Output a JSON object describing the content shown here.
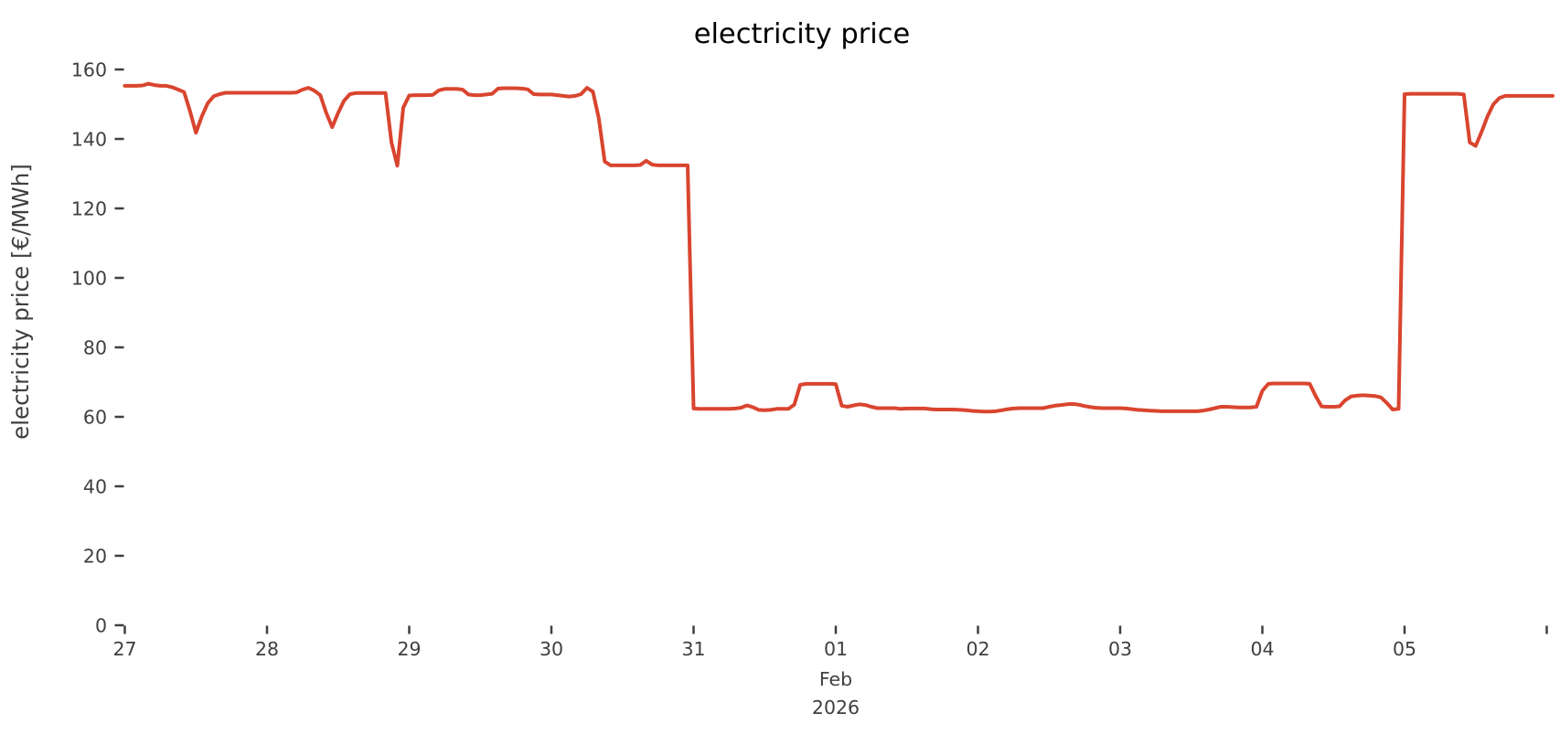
{
  "title": "electricity price",
  "colors": {
    "line": "#d9452f",
    "tick_text": "#3f3f3f",
    "tick_mark": "#3f3f3f",
    "title_text": "#000000"
  },
  "y_axis": {
    "label": "electricity price [€/MWh]",
    "ticks": [
      0,
      20,
      40,
      60,
      80,
      100,
      120,
      140,
      160
    ]
  },
  "x_axis": {
    "day_labels": [
      "27",
      "28",
      "29",
      "30",
      "31",
      "01",
      "02",
      "03",
      "04",
      "05"
    ],
    "edge_tick": true,
    "month_label": "Feb",
    "year_label": "2026",
    "month_label_day_index": 5
  },
  "chart_data": {
    "type": "line",
    "title": "electricity price",
    "xlabel": "",
    "ylabel": "electricity price [€/MWh]",
    "x_start": "2026-01-27T00:00",
    "x_step": "1 hour",
    "x_end": "2026-02-06T01:00",
    "ylim": [
      0,
      160
    ],
    "grid": false,
    "legend": "none",
    "x_tick_labels": [
      "27",
      "28",
      "29",
      "30",
      "31",
      "01",
      "02",
      "03",
      "04",
      "05"
    ],
    "y_tick_labels": [
      0,
      20,
      40,
      60,
      80,
      100,
      120,
      140,
      160
    ],
    "series": [
      {
        "name": "electricity price",
        "color": "#d9452f",
        "values": [
          155.3,
          155.3,
          155.3,
          155.4,
          155.9,
          155.5,
          155.3,
          155.3,
          154.9,
          154.2,
          153.5,
          148.0,
          141.8,
          146.5,
          150.3,
          152.3,
          152.9,
          153.3,
          153.3,
          153.3,
          153.3,
          153.3,
          153.3,
          153.3,
          153.3,
          153.3,
          153.3,
          153.3,
          153.3,
          153.4,
          154.2,
          154.7,
          153.9,
          152.6,
          147.5,
          143.4,
          147.5,
          151.0,
          152.9,
          153.2,
          153.2,
          153.2,
          153.2,
          153.2,
          153.2,
          139.0,
          132.3,
          149.0,
          152.5,
          152.6,
          152.6,
          152.6,
          152.7,
          154.0,
          154.4,
          154.4,
          154.4,
          154.2,
          152.8,
          152.6,
          152.6,
          152.8,
          153.0,
          154.5,
          154.6,
          154.6,
          154.6,
          154.5,
          154.3,
          152.9,
          152.8,
          152.8,
          152.8,
          152.6,
          152.4,
          152.2,
          152.4,
          152.9,
          154.7,
          153.6,
          146.0,
          133.5,
          132.4,
          132.4,
          132.4,
          132.4,
          132.4,
          132.5,
          133.7,
          132.6,
          132.4,
          132.4,
          132.4,
          132.4,
          132.4,
          132.4,
          62.4,
          62.3,
          62.3,
          62.3,
          62.3,
          62.3,
          62.3,
          62.4,
          62.6,
          63.3,
          62.8,
          62.0,
          61.9,
          62.0,
          62.3,
          62.3,
          62.3,
          63.5,
          69.2,
          69.5,
          69.5,
          69.5,
          69.5,
          69.5,
          69.4,
          63.2,
          62.9,
          63.3,
          63.6,
          63.4,
          62.9,
          62.5,
          62.5,
          62.5,
          62.5,
          62.3,
          62.4,
          62.4,
          62.4,
          62.4,
          62.2,
          62.1,
          62.1,
          62.1,
          62.1,
          62.0,
          61.9,
          61.7,
          61.6,
          61.5,
          61.5,
          61.6,
          61.9,
          62.2,
          62.4,
          62.5,
          62.5,
          62.5,
          62.5,
          62.5,
          62.9,
          63.2,
          63.4,
          63.6,
          63.7,
          63.5,
          63.1,
          62.8,
          62.6,
          62.5,
          62.5,
          62.5,
          62.5,
          62.4,
          62.2,
          62.0,
          61.9,
          61.8,
          61.7,
          61.6,
          61.6,
          61.6,
          61.6,
          61.6,
          61.6,
          61.6,
          61.8,
          62.1,
          62.5,
          62.9,
          62.9,
          62.8,
          62.7,
          62.7,
          62.7,
          62.9,
          67.5,
          69.5,
          69.6,
          69.6,
          69.6,
          69.6,
          69.6,
          69.6,
          69.5,
          66.0,
          63.0,
          62.9,
          62.9,
          63.0,
          64.8,
          65.9,
          66.1,
          66.2,
          66.1,
          66.0,
          65.6,
          64.0,
          62.1,
          62.3,
          152.9,
          153.0,
          153.0,
          153.0,
          153.0,
          153.0,
          153.0,
          153.0,
          153.0,
          153.0,
          152.8,
          139.0,
          138.0,
          142.0,
          146.5,
          150.0,
          151.8,
          152.4,
          152.4,
          152.4,
          152.4,
          152.4,
          152.4,
          152.4,
          152.4,
          152.4
        ]
      }
    ]
  }
}
